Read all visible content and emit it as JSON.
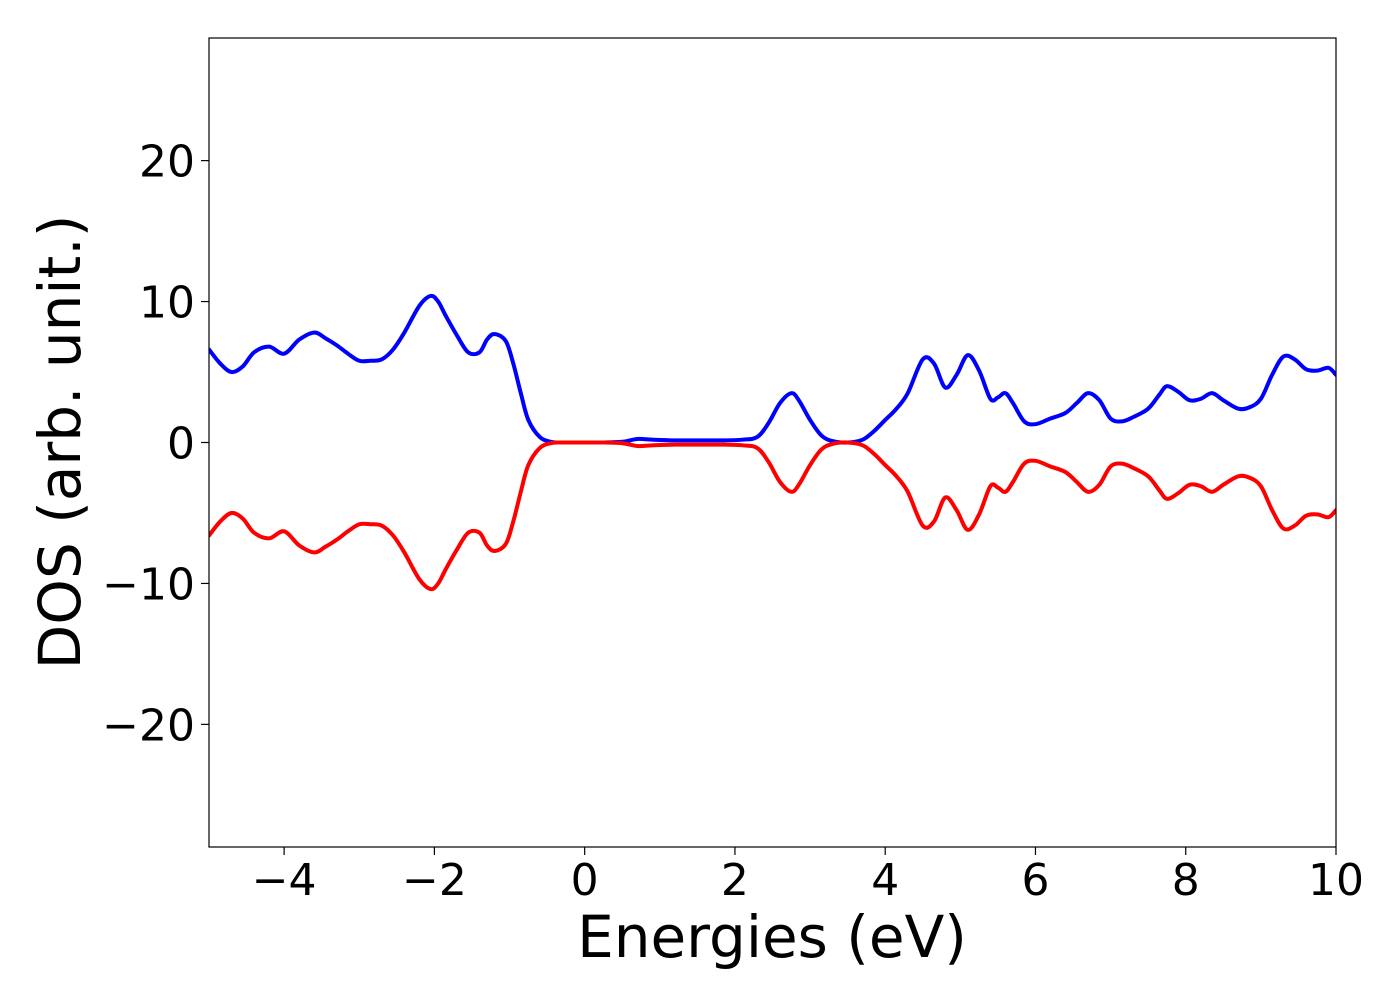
{
  "chart_data": {
    "type": "line",
    "title": "",
    "xlabel": "Energies (eV)",
    "ylabel": "DOS (arb. unit.)",
    "xlim": [
      -5,
      10
    ],
    "ylim": [
      -28.7,
      28.7
    ],
    "grid": false,
    "legend": "none",
    "x_ticks": [
      -4,
      -2,
      0,
      2,
      4,
      6,
      8,
      10
    ],
    "x_tick_labels": [
      "−4",
      "−2",
      "0",
      "2",
      "4",
      "6",
      "8",
      "10"
    ],
    "y_ticks": [
      -20,
      -10,
      0,
      10,
      20
    ],
    "y_tick_labels": [
      "−20",
      "−10",
      "0",
      "10",
      "20"
    ],
    "series": [
      {
        "color": "#0000ff",
        "x": [
          -5.0,
          -4.85,
          -4.7,
          -4.55,
          -4.4,
          -4.2,
          -4.0,
          -3.8,
          -3.6,
          -3.45,
          -3.3,
          -3.15,
          -3.0,
          -2.85,
          -2.7,
          -2.55,
          -2.4,
          -2.2,
          -2.05,
          -1.95,
          -1.85,
          -1.7,
          -1.55,
          -1.4,
          -1.3,
          -1.2,
          -1.05,
          -0.95,
          -0.85,
          -0.75,
          -0.6,
          -0.45,
          -0.3,
          -0.1,
          0.2,
          0.5,
          0.7,
          0.9,
          1.2,
          1.5,
          1.8,
          2.1,
          2.3,
          2.45,
          2.6,
          2.75,
          2.85,
          3.0,
          3.15,
          3.3,
          3.5,
          3.7,
          3.85,
          4.0,
          4.15,
          4.3,
          4.5,
          4.65,
          4.8,
          4.95,
          5.1,
          5.25,
          5.4,
          5.5,
          5.6,
          5.7,
          5.85,
          6.0,
          6.2,
          6.4,
          6.55,
          6.7,
          6.85,
          7.0,
          7.15,
          7.3,
          7.5,
          7.65,
          7.75,
          7.9,
          8.05,
          8.2,
          8.35,
          8.5,
          8.7,
          8.85,
          9.0,
          9.15,
          9.3,
          9.45,
          9.6,
          9.75,
          9.9,
          10.0
        ],
        "y": [
          6.6,
          5.6,
          5.0,
          5.4,
          6.4,
          6.8,
          6.3,
          7.3,
          7.8,
          7.4,
          6.9,
          6.3,
          5.8,
          5.8,
          5.9,
          6.6,
          7.8,
          9.7,
          10.4,
          10.0,
          9.0,
          7.6,
          6.4,
          6.4,
          7.3,
          7.7,
          7.2,
          5.6,
          3.5,
          1.6,
          0.4,
          0.05,
          0.0,
          0.0,
          0.0,
          0.05,
          0.25,
          0.2,
          0.15,
          0.15,
          0.15,
          0.2,
          0.4,
          1.4,
          2.8,
          3.5,
          3.0,
          1.6,
          0.5,
          0.1,
          0.0,
          0.2,
          0.8,
          1.6,
          2.4,
          3.5,
          5.9,
          5.6,
          3.9,
          4.8,
          6.2,
          5.1,
          3.1,
          3.2,
          3.5,
          2.8,
          1.5,
          1.3,
          1.7,
          2.1,
          2.8,
          3.5,
          3.0,
          1.7,
          1.5,
          1.8,
          2.4,
          3.4,
          4.0,
          3.6,
          3.0,
          3.1,
          3.5,
          3.0,
          2.4,
          2.5,
          3.1,
          4.8,
          6.1,
          5.9,
          5.2,
          5.1,
          5.3,
          4.8
        ]
      },
      {
        "color": "#ff0000",
        "x": [
          -5.0,
          -4.85,
          -4.7,
          -4.55,
          -4.4,
          -4.2,
          -4.0,
          -3.8,
          -3.6,
          -3.45,
          -3.3,
          -3.15,
          -3.0,
          -2.85,
          -2.7,
          -2.55,
          -2.4,
          -2.2,
          -2.05,
          -1.95,
          -1.85,
          -1.7,
          -1.55,
          -1.4,
          -1.3,
          -1.2,
          -1.05,
          -0.95,
          -0.85,
          -0.75,
          -0.6,
          -0.45,
          -0.3,
          -0.1,
          0.2,
          0.5,
          0.7,
          0.9,
          1.2,
          1.5,
          1.8,
          2.1,
          2.3,
          2.45,
          2.6,
          2.75,
          2.85,
          3.0,
          3.15,
          3.3,
          3.5,
          3.7,
          3.85,
          4.0,
          4.15,
          4.3,
          4.5,
          4.65,
          4.8,
          4.95,
          5.1,
          5.25,
          5.4,
          5.5,
          5.6,
          5.7,
          5.85,
          6.0,
          6.2,
          6.4,
          6.55,
          6.7,
          6.85,
          7.0,
          7.15,
          7.3,
          7.5,
          7.65,
          7.75,
          7.9,
          8.05,
          8.2,
          8.35,
          8.5,
          8.7,
          8.85,
          9.0,
          9.15,
          9.3,
          9.45,
          9.6,
          9.75,
          9.9,
          10.0
        ],
        "y": [
          -6.6,
          -5.6,
          -5.0,
          -5.4,
          -6.4,
          -6.8,
          -6.3,
          -7.3,
          -7.8,
          -7.4,
          -6.9,
          -6.3,
          -5.8,
          -5.8,
          -5.9,
          -6.6,
          -7.8,
          -9.7,
          -10.4,
          -10.0,
          -9.0,
          -7.6,
          -6.4,
          -6.4,
          -7.3,
          -7.7,
          -7.2,
          -5.6,
          -3.5,
          -1.6,
          -0.4,
          -0.05,
          0.0,
          0.0,
          0.0,
          -0.05,
          -0.25,
          -0.2,
          -0.15,
          -0.15,
          -0.15,
          -0.2,
          -0.4,
          -1.4,
          -2.8,
          -3.5,
          -3.0,
          -1.6,
          -0.5,
          -0.1,
          0.0,
          -0.2,
          -0.8,
          -1.6,
          -2.4,
          -3.5,
          -5.9,
          -5.6,
          -3.9,
          -4.8,
          -6.2,
          -5.1,
          -3.1,
          -3.2,
          -3.5,
          -2.8,
          -1.5,
          -1.3,
          -1.7,
          -2.1,
          -2.8,
          -3.5,
          -3.0,
          -1.7,
          -1.5,
          -1.8,
          -2.4,
          -3.4,
          -4.0,
          -3.6,
          -3.0,
          -3.1,
          -3.5,
          -3.0,
          -2.4,
          -2.5,
          -3.1,
          -4.8,
          -6.1,
          -5.9,
          -5.2,
          -5.1,
          -5.3,
          -4.8
        ]
      }
    ]
  }
}
